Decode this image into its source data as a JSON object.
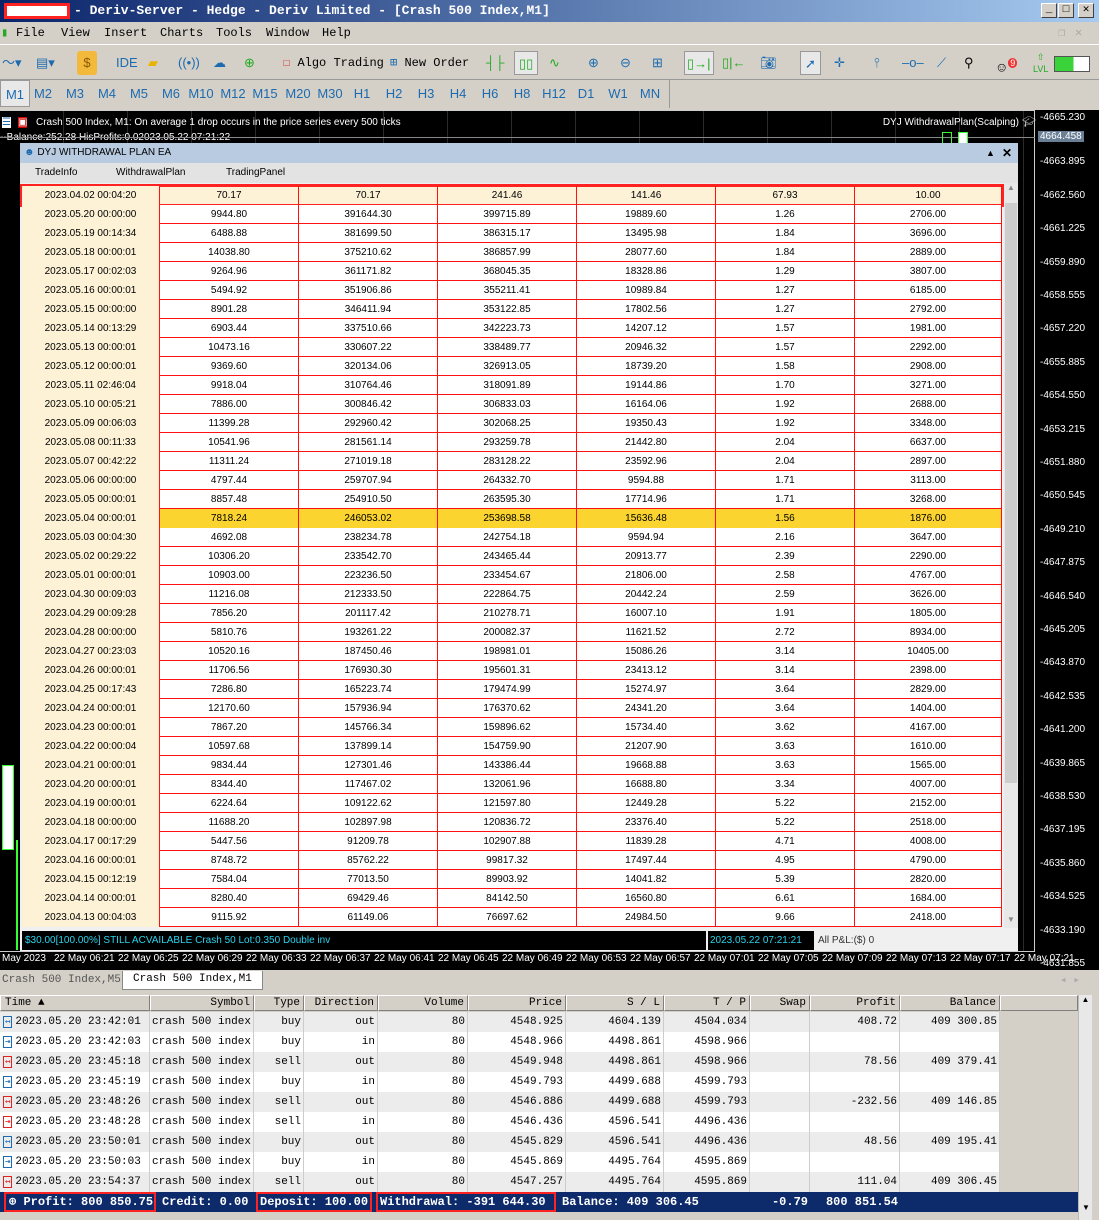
{
  "window": {
    "title": "- Deriv-Server - Hedge - Deriv Limited - [Crash 500 Index,M1]",
    "min": "_",
    "max": "□",
    "close": "✕"
  },
  "menu": [
    "File",
    "View",
    "Insert",
    "Charts",
    "Tools",
    "Window",
    "Help"
  ],
  "toolbar": {
    "ide": "IDE",
    "algo_trading": "Algo Trading",
    "new_order": "New Order",
    "notif_count": "9",
    "lvl": "LVL"
  },
  "timeframes": [
    "M1",
    "M2",
    "M3",
    "M4",
    "M5",
    "M6",
    "M10",
    "M12",
    "M15",
    "M20",
    "M30",
    "H1",
    "H2",
    "H3",
    "H4",
    "H6",
    "H8",
    "H12",
    "D1",
    "W1",
    "MN"
  ],
  "active_timeframe": "M1",
  "chart": {
    "header": "Crash 500 Index, M1:  On average 1 drop occurs in the price series every 500 ticks",
    "info": "--Balance:252.28 HisProfits:0.02023.05.22 07:21:22",
    "ea_label": "DYJ WithdrawalPlan(Scalping)",
    "current_price": "4664.458",
    "price_labels": [
      "4665.230",
      "4663.895",
      "4662.560",
      "4661.225",
      "4659.890",
      "4658.555",
      "4657.220",
      "4655.885",
      "4654.550",
      "4653.215",
      "4651.880",
      "4650.545",
      "4649.210",
      "4647.875",
      "4646.540",
      "4645.205",
      "4643.870",
      "4642.535",
      "4641.200",
      "4639.865",
      "4638.530",
      "4637.195",
      "4635.860",
      "4634.525",
      "4633.190",
      "4631.855"
    ],
    "time_labels": [
      "May 2023",
      "22 May 06:21",
      "22 May 06:25",
      "22 May 06:29",
      "22 May 06:33",
      "22 May 06:37",
      "22 May 06:41",
      "22 May 06:45",
      "22 May 06:49",
      "22 May 06:53",
      "22 May 06:57",
      "22 May 07:01",
      "22 May 07:05",
      "22 May 07:09",
      "22 May 07:13",
      "22 May 07:17",
      "22 May 07:21"
    ]
  },
  "panel": {
    "title": "DYJ WITHDRAWAL PLAN EA",
    "tabs": [
      "TradeInfo",
      "WithdrawalPlan",
      "TradingPanel"
    ],
    "highlight_color": "#fbd42f",
    "rows": [
      [
        "2023.04.02 00:04:20",
        "70.17",
        "70.17",
        "241.46",
        "141.46",
        "67.93",
        "10.00"
      ],
      [
        "2023.05.20 00:00:00",
        "9944.80",
        "391644.30",
        "399715.89",
        "19889.60",
        "1.26",
        "2706.00"
      ],
      [
        "2023.05.19 00:14:34",
        "6488.88",
        "381699.50",
        "386315.17",
        "13495.98",
        "1.84",
        "3696.00"
      ],
      [
        "2023.05.18 00:00:01",
        "14038.80",
        "375210.62",
        "386857.99",
        "28077.60",
        "1.84",
        "2889.00"
      ],
      [
        "2023.05.17 00:02:03",
        "9264.96",
        "361171.82",
        "368045.35",
        "18328.86",
        "1.29",
        "3807.00"
      ],
      [
        "2023.05.16 00:00:01",
        "5494.92",
        "351906.86",
        "355211.41",
        "10989.84",
        "1.27",
        "6185.00"
      ],
      [
        "2023.05.15 00:00:00",
        "8901.28",
        "346411.94",
        "353122.85",
        "17802.56",
        "1.27",
        "2792.00"
      ],
      [
        "2023.05.14 00:13:29",
        "6903.44",
        "337510.66",
        "342223.73",
        "14207.12",
        "1.57",
        "1981.00"
      ],
      [
        "2023.05.13 00:00:01",
        "10473.16",
        "330607.22",
        "338489.77",
        "20946.32",
        "1.57",
        "2292.00"
      ],
      [
        "2023.05.12 00:00:01",
        "9369.60",
        "320134.06",
        "326913.05",
        "18739.20",
        "1.58",
        "2908.00"
      ],
      [
        "2023.05.11 02:46:04",
        "9918.04",
        "310764.46",
        "318091.89",
        "19144.86",
        "1.70",
        "3271.00"
      ],
      [
        "2023.05.10 00:05:21",
        "7886.00",
        "300846.42",
        "306833.03",
        "16164.06",
        "1.92",
        "2688.00"
      ],
      [
        "2023.05.09 00:06:03",
        "11399.28",
        "292960.42",
        "302068.25",
        "19350.43",
        "1.92",
        "3348.00"
      ],
      [
        "2023.05.08 00:11:33",
        "10541.96",
        "281561.14",
        "293259.78",
        "21442.80",
        "2.04",
        "6637.00"
      ],
      [
        "2023.05.07 00:42:22",
        "11311.24",
        "271019.18",
        "283128.22",
        "23592.96",
        "2.04",
        "2897.00"
      ],
      [
        "2023.05.06 00:00:00",
        "4797.44",
        "259707.94",
        "264332.70",
        "9594.88",
        "1.71",
        "3113.00"
      ],
      [
        "2023.05.05 00:00:01",
        "8857.48",
        "254910.50",
        "263595.30",
        "17714.96",
        "1.71",
        "3268.00"
      ],
      [
        "2023.05.04 00:00:01",
        "7818.24",
        "246053.02",
        "253698.58",
        "15636.48",
        "1.56",
        "1876.00"
      ],
      [
        "2023.05.03 00:04:30",
        "4692.08",
        "238234.78",
        "242754.18",
        "9594.94",
        "2.16",
        "3647.00"
      ],
      [
        "2023.05.02 00:29:22",
        "10306.20",
        "233542.70",
        "243465.44",
        "20913.77",
        "2.39",
        "2290.00"
      ],
      [
        "2023.05.01 00:00:01",
        "10903.00",
        "223236.50",
        "233454.67",
        "21806.00",
        "2.58",
        "4767.00"
      ],
      [
        "2023.04.30 00:09:03",
        "11216.08",
        "212333.50",
        "222864.75",
        "20442.24",
        "2.59",
        "3626.00"
      ],
      [
        "2023.04.29 00:09:28",
        "7856.20",
        "201117.42",
        "210278.71",
        "16007.10",
        "1.91",
        "1805.00"
      ],
      [
        "2023.04.28 00:00:00",
        "5810.76",
        "193261.22",
        "200082.37",
        "11621.52",
        "2.72",
        "8934.00"
      ],
      [
        "2023.04.27 00:23:03",
        "10520.16",
        "187450.46",
        "198981.01",
        "15086.26",
        "3.14",
        "10405.00"
      ],
      [
        "2023.04.26 00:00:01",
        "11706.56",
        "176930.30",
        "195601.31",
        "23413.12",
        "3.14",
        "2398.00"
      ],
      [
        "2023.04.25 00:17:43",
        "7286.80",
        "165223.74",
        "179474.99",
        "15274.97",
        "3.64",
        "2829.00"
      ],
      [
        "2023.04.24 00:00:01",
        "12170.60",
        "157936.94",
        "176370.62",
        "24341.20",
        "3.64",
        "1404.00"
      ],
      [
        "2023.04.23 00:00:01",
        "7867.20",
        "145766.34",
        "159896.62",
        "15734.40",
        "3.62",
        "4167.00"
      ],
      [
        "2023.04.22 00:00:04",
        "10597.68",
        "137899.14",
        "154759.90",
        "21207.90",
        "3.63",
        "1610.00"
      ],
      [
        "2023.04.21 00:00:01",
        "9834.44",
        "127301.46",
        "143386.44",
        "19668.88",
        "3.63",
        "1565.00"
      ],
      [
        "2023.04.20 00:00:01",
        "8344.40",
        "117467.02",
        "132061.96",
        "16688.80",
        "3.34",
        "4007.00"
      ],
      [
        "2023.04.19 00:00:01",
        "6224.64",
        "109122.62",
        "121597.80",
        "12449.28",
        "5.22",
        "2152.00"
      ],
      [
        "2023.04.18 00:00:00",
        "11688.20",
        "102897.98",
        "120836.72",
        "23376.40",
        "5.22",
        "2518.00"
      ],
      [
        "2023.04.17 00:17:29",
        "5447.56",
        "91209.78",
        "102907.88",
        "11839.28",
        "4.71",
        "4008.00"
      ],
      [
        "2023.04.16 00:00:01",
        "8748.72",
        "85762.22",
        "99817.32",
        "17497.44",
        "4.95",
        "4790.00"
      ],
      [
        "2023.04.15 00:12:19",
        "7584.04",
        "77013.50",
        "89903.92",
        "14041.82",
        "5.39",
        "2820.00"
      ],
      [
        "2023.04.14 00:00:01",
        "8280.40",
        "69429.46",
        "84142.50",
        "16560.80",
        "6.61",
        "1684.00"
      ],
      [
        "2023.04.13 00:04:03",
        "9115.92",
        "61149.06",
        "76697.62",
        "24984.50",
        "9.66",
        "2418.00"
      ]
    ],
    "highlighted_row_date": "2023.05.04 00:00:01",
    "status_message": "$30.00[100.00%] STILL ACVAILABLE Crash 50 Lot:0.350 Double inv",
    "status_time": "2023.05.22 07:21:21",
    "pnl": "All P&L:($) 0"
  },
  "bottom_tabs": [
    "Crash 500 Index,M5",
    "Crash 500 Index,M1"
  ],
  "history": {
    "columns": [
      "Time",
      "Symbol",
      "Type",
      "Direction",
      "Volume",
      "Price",
      "S / L",
      "T / P",
      "Swap",
      "Profit",
      "Balance"
    ],
    "rows": [
      [
        "2023.05.20 23:42:01",
        "crash 500 index",
        "buy",
        "out",
        "80",
        "4548.925",
        "4604.139",
        "4504.034",
        "",
        "408.72",
        "409 300.85"
      ],
      [
        "2023.05.20 23:42:03",
        "crash 500 index",
        "buy",
        "in",
        "80",
        "4548.966",
        "4498.861",
        "4598.966",
        "",
        "",
        ""
      ],
      [
        "2023.05.20 23:45:18",
        "crash 500 index",
        "sell",
        "out",
        "80",
        "4549.948",
        "4498.861",
        "4598.966",
        "",
        "78.56",
        "409 379.41"
      ],
      [
        "2023.05.20 23:45:19",
        "crash 500 index",
        "buy",
        "in",
        "80",
        "4549.793",
        "4499.688",
        "4599.793",
        "",
        "",
        ""
      ],
      [
        "2023.05.20 23:48:26",
        "crash 500 index",
        "sell",
        "out",
        "80",
        "4546.886",
        "4499.688",
        "4599.793",
        "",
        "-232.56",
        "409 146.85"
      ],
      [
        "2023.05.20 23:48:28",
        "crash 500 index",
        "sell",
        "in",
        "80",
        "4546.436",
        "4596.541",
        "4496.436",
        "",
        "",
        ""
      ],
      [
        "2023.05.20 23:50:01",
        "crash 500 index",
        "buy",
        "out",
        "80",
        "4545.829",
        "4596.541",
        "4496.436",
        "",
        "48.56",
        "409 195.41"
      ],
      [
        "2023.05.20 23:50:03",
        "crash 500 index",
        "buy",
        "in",
        "80",
        "4545.869",
        "4495.764",
        "4595.869",
        "",
        "",
        ""
      ],
      [
        "2023.05.20 23:54:37",
        "crash 500 index",
        "sell",
        "out",
        "80",
        "4547.257",
        "4495.764",
        "4595.869",
        "",
        "111.04",
        "409 306.45"
      ]
    ],
    "summary": {
      "profit": "Profit: 800 850.75",
      "credit": "Credit: 0.00",
      "deposit": "Deposit: 100.00",
      "withdrawal": "Withdrawal: -391 644.30",
      "balance": "Balance: 409 306.45",
      "swap": "-0.79",
      "total": "800 851.54"
    }
  }
}
